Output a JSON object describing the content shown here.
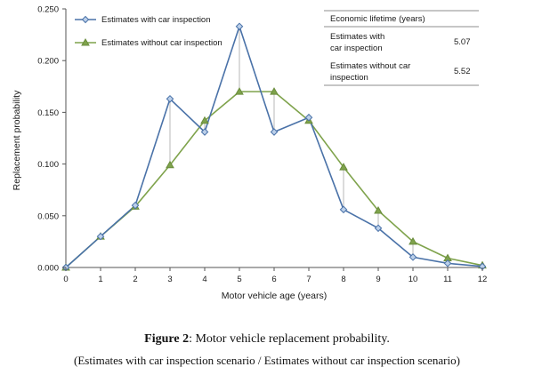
{
  "chart_data": {
    "type": "line",
    "x": [
      0,
      1,
      2,
      3,
      4,
      5,
      6,
      7,
      8,
      9,
      10,
      11,
      12
    ],
    "xlabel": "Motor vehicle age (years)",
    "ylabel": "Replacement probability",
    "ylim": [
      0,
      0.25
    ],
    "xlim": [
      0,
      12
    ],
    "yticks": [
      "0.000",
      "0.050",
      "0.100",
      "0.150",
      "0.200",
      "0.250"
    ],
    "ytick_values": [
      0,
      0.05,
      0.1,
      0.15,
      0.2,
      0.25
    ],
    "xticks": [
      "0",
      "1",
      "2",
      "3",
      "4",
      "5",
      "6",
      "7",
      "8",
      "9",
      "10",
      "11",
      "12"
    ],
    "grid": false,
    "legend_position": "top-left",
    "series": [
      {
        "name": "Estimates with car inspection",
        "color": "#4a72a8",
        "marker": "diamond",
        "values": [
          0.0,
          0.03,
          0.06,
          0.163,
          0.131,
          0.233,
          0.131,
          0.145,
          0.056,
          0.038,
          0.01,
          0.004,
          0.001
        ]
      },
      {
        "name": "Estimates without car inspection",
        "color": "#7fa34c",
        "marker": "triangle",
        "values": [
          0.0,
          0.03,
          0.059,
          0.099,
          0.142,
          0.17,
          0.17,
          0.142,
          0.097,
          0.055,
          0.025,
          0.009,
          0.002
        ]
      }
    ],
    "connectors": "vertical grey lines linking the two series at each age",
    "inset_table": {
      "header": "Economic lifetime (years)",
      "rows": [
        {
          "label_line1": "Estimates with",
          "label_line2": "car inspection",
          "value": "5.07"
        },
        {
          "label_line1": "Estimates without car",
          "label_line2": "inspection",
          "value": "5.52"
        }
      ]
    }
  },
  "caption": {
    "figure_label": "Figure 2",
    "title": ": Motor vehicle replacement probability.",
    "subtitle": "(Estimates with car inspection scenario / Estimates without car inspection scenario)"
  }
}
